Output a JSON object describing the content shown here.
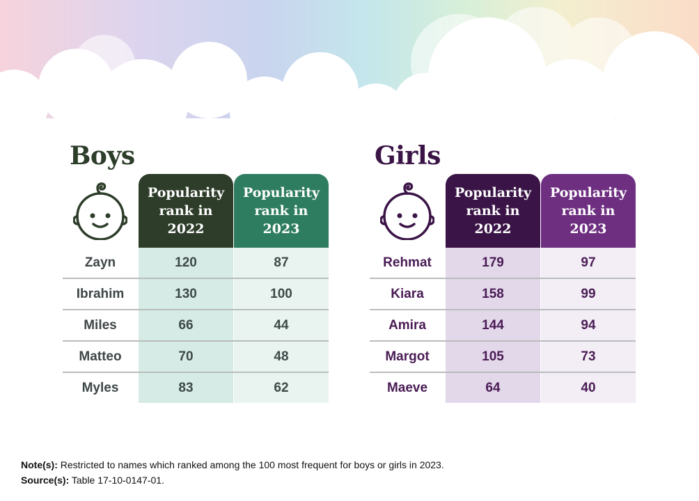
{
  "boys": {
    "title": "Boys",
    "header_2022": "Popularity rank in 2022",
    "header_2023": "Popularity rank in 2023",
    "rows": [
      {
        "name": "Zayn",
        "rank_2022": "120",
        "rank_2023": "87"
      },
      {
        "name": "Ibrahim",
        "rank_2022": "130",
        "rank_2023": "100"
      },
      {
        "name": "Miles",
        "rank_2022": "66",
        "rank_2023": "44"
      },
      {
        "name": "Matteo",
        "rank_2022": "70",
        "rank_2023": "48"
      },
      {
        "name": "Myles",
        "rank_2022": "83",
        "rank_2023": "62"
      }
    ]
  },
  "girls": {
    "title": "Girls",
    "header_2022": "Popularity rank in 2022",
    "header_2023": "Popularity rank in 2023",
    "rows": [
      {
        "name": "Rehmat",
        "rank_2022": "179",
        "rank_2023": "97"
      },
      {
        "name": "Kiara",
        "rank_2022": "158",
        "rank_2023": "99"
      },
      {
        "name": "Amira",
        "rank_2022": "144",
        "rank_2023": "94"
      },
      {
        "name": "Margot",
        "rank_2022": "105",
        "rank_2023": "73"
      },
      {
        "name": "Maeve",
        "rank_2022": "64",
        "rank_2023": "40"
      }
    ]
  },
  "footer": {
    "note_label": "Note(s):",
    "note_text": " Restricted to names which ranked among the 100 most frequent for boys or girls in 2023.",
    "source_label": "Source(s):",
    "source_text": " Table 17-10-0147-01."
  },
  "colors": {
    "boys_dark": "#2e3d2a",
    "boys_green": "#2f7d60",
    "girls_dark": "#3a1446",
    "girls_purple": "#6e2f80"
  },
  "icons": [
    "baby-face-icon"
  ],
  "chart_data": {
    "type": "table",
    "tables": [
      {
        "title": "Boys",
        "columns": [
          "",
          "Popularity rank in 2022",
          "Popularity rank in 2023"
        ],
        "rows": [
          [
            "Zayn",
            120,
            87
          ],
          [
            "Ibrahim",
            130,
            100
          ],
          [
            "Miles",
            66,
            44
          ],
          [
            "Matteo",
            70,
            48
          ],
          [
            "Myles",
            83,
            62
          ]
        ]
      },
      {
        "title": "Girls",
        "columns": [
          "",
          "Popularity rank in 2022",
          "Popularity rank in 2023"
        ],
        "rows": [
          [
            "Rehmat",
            179,
            97
          ],
          [
            "Kiara",
            158,
            99
          ],
          [
            "Amira",
            144,
            94
          ],
          [
            "Margot",
            105,
            73
          ],
          [
            "Maeve",
            64,
            40
          ]
        ]
      }
    ]
  }
}
